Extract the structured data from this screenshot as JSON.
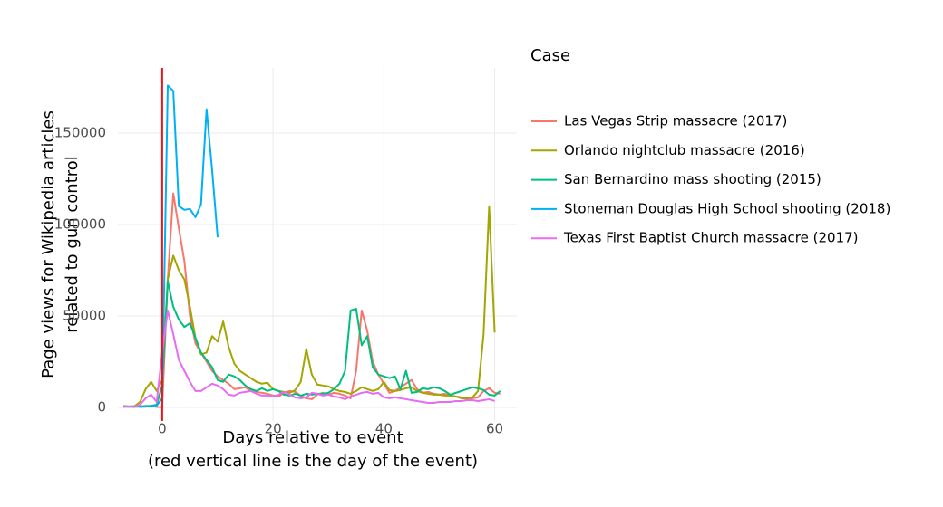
{
  "chart_data": {
    "type": "line",
    "x_label": [
      "Days relative to event",
      "(red vertical line is the day of the event)"
    ],
    "y_label": [
      "Page views for Wikipedia articles",
      "related to gun control"
    ],
    "legend_title": "Case",
    "legend": "right",
    "grid": true,
    "xlim": [
      -8,
      64
    ],
    "xticks": [
      0,
      20,
      40,
      60
    ],
    "ylim": [
      -7400,
      185600
    ],
    "yticks": [
      0,
      50000,
      100000,
      150000
    ],
    "vline": {
      "x": 0,
      "color": "#e3191c"
    },
    "x": [
      -7,
      -6,
      -5,
      -4,
      -3,
      -2,
      -1,
      0,
      1,
      2,
      3,
      4,
      5,
      6,
      7,
      8,
      9,
      10,
      11,
      12,
      13,
      14,
      15,
      16,
      17,
      18,
      19,
      20,
      21,
      22,
      23,
      24,
      25,
      26,
      27,
      28,
      29,
      30,
      31,
      32,
      33,
      34,
      35,
      36,
      37,
      38,
      39,
      40,
      41,
      42,
      43,
      44,
      45,
      46,
      47,
      48,
      49,
      50,
      51,
      52,
      53,
      54,
      55,
      56,
      57,
      58,
      59,
      60,
      61
    ],
    "series": [
      {
        "name": "Las Vegas Strip massacre (2017)",
        "color": "#f8766d",
        "values": [
          700,
          500,
          700,
          600,
          400,
          1000,
          300,
          200,
          70000,
          117000,
          98000,
          80000,
          50000,
          35000,
          30000,
          25000,
          20000,
          17000,
          15000,
          13000,
          10000,
          10500,
          11000,
          9000,
          8500,
          8000,
          7500,
          6500,
          6000,
          8000,
          9000,
          8500,
          6500,
          5000,
          4500,
          7000,
          8000,
          7000,
          8000,
          7500,
          6500,
          5000,
          20000,
          53000,
          42000,
          25000,
          18000,
          13000,
          8000,
          9000,
          11000,
          13000,
          15000,
          10000,
          8000,
          8500,
          7500,
          7000,
          7500,
          6500,
          6000,
          5500,
          4500,
          5000,
          5500,
          9000,
          10500,
          8000,
          7500
        ]
      },
      {
        "name": "Orlando nightclub massacre (2016)",
        "color": "#a3a500",
        "values": [
          800,
          600,
          700,
          3000,
          10000,
          14000,
          9000,
          15000,
          70000,
          83000,
          75000,
          70000,
          55000,
          38000,
          29000,
          30000,
          39000,
          36000,
          47000,
          33000,
          24000,
          20000,
          18000,
          16000,
          14000,
          13000,
          13500,
          10000,
          9000,
          8500,
          8000,
          9500,
          14000,
          32000,
          18000,
          12500,
          12000,
          11500,
          10000,
          9000,
          8500,
          7500,
          9000,
          11000,
          10000,
          9000,
          10000,
          14000,
          9500,
          9000,
          9500,
          10500,
          11000,
          9000,
          8000,
          7500,
          7000,
          7000,
          6500,
          6500,
          6000,
          5000,
          5000,
          5500,
          9000,
          40000,
          110000,
          41000,
          null
        ]
      },
      {
        "name": "San Bernardino mass shooting (2015)",
        "color": "#00bf7d",
        "values": [
          400,
          500,
          300,
          600,
          800,
          900,
          1500,
          12000,
          69000,
          55000,
          48000,
          44000,
          46000,
          38000,
          30000,
          26000,
          22000,
          15000,
          14000,
          18000,
          17000,
          15000,
          12000,
          10000,
          9000,
          10500,
          9000,
          10000,
          9000,
          7000,
          6500,
          7500,
          6500,
          7500,
          7000,
          7500,
          7500,
          8000,
          10000,
          13000,
          20000,
          53000,
          54000,
          34000,
          39000,
          22000,
          18000,
          17000,
          16000,
          17000,
          10000,
          20000,
          8000,
          8500,
          10500,
          10000,
          11000,
          10500,
          9000,
          7000,
          8000,
          9000,
          10000,
          11000,
          10500,
          9500,
          7000,
          6500,
          9000
        ]
      },
      {
        "name": "Stoneman Douglas High School shooting (2018)",
        "color": "#00b0f6",
        "values": [
          500,
          400,
          600,
          300,
          500,
          700,
          1000,
          5000,
          176000,
          173000,
          110000,
          108000,
          108500,
          104000,
          111000,
          163000,
          130000,
          93000,
          null,
          null,
          null,
          null,
          null,
          null,
          null,
          null,
          null,
          null,
          null,
          null,
          null,
          null,
          null,
          null,
          null,
          null,
          null,
          null,
          null,
          null,
          null,
          null,
          null,
          null,
          null,
          null,
          null,
          null,
          null,
          null,
          null,
          null,
          null,
          null,
          null,
          null,
          null,
          null,
          null,
          null,
          null,
          null,
          null,
          null,
          null,
          null,
          null,
          null,
          null
        ]
      },
      {
        "name": "Texas First Baptist Church massacre (2017)",
        "color": "#e76bf3",
        "values": [
          400,
          600,
          400,
          1500,
          5000,
          7000,
          3000,
          30000,
          53000,
          40000,
          26000,
          20000,
          14000,
          9000,
          9000,
          11000,
          13000,
          12000,
          10000,
          7000,
          6500,
          8000,
          8500,
          9000,
          7500,
          6500,
          6500,
          6000,
          7000,
          8500,
          7000,
          5500,
          5000,
          5500,
          8000,
          7500,
          6500,
          7000,
          6000,
          5500,
          4500,
          6000,
          7000,
          8000,
          8500,
          7500,
          8000,
          5500,
          5000,
          5500,
          5000,
          4500,
          4000,
          3500,
          3000,
          2500,
          2500,
          3000,
          3000,
          3000,
          3500,
          3500,
          4000,
          4000,
          3500,
          4000,
          4500,
          3500,
          null
        ]
      }
    ]
  }
}
